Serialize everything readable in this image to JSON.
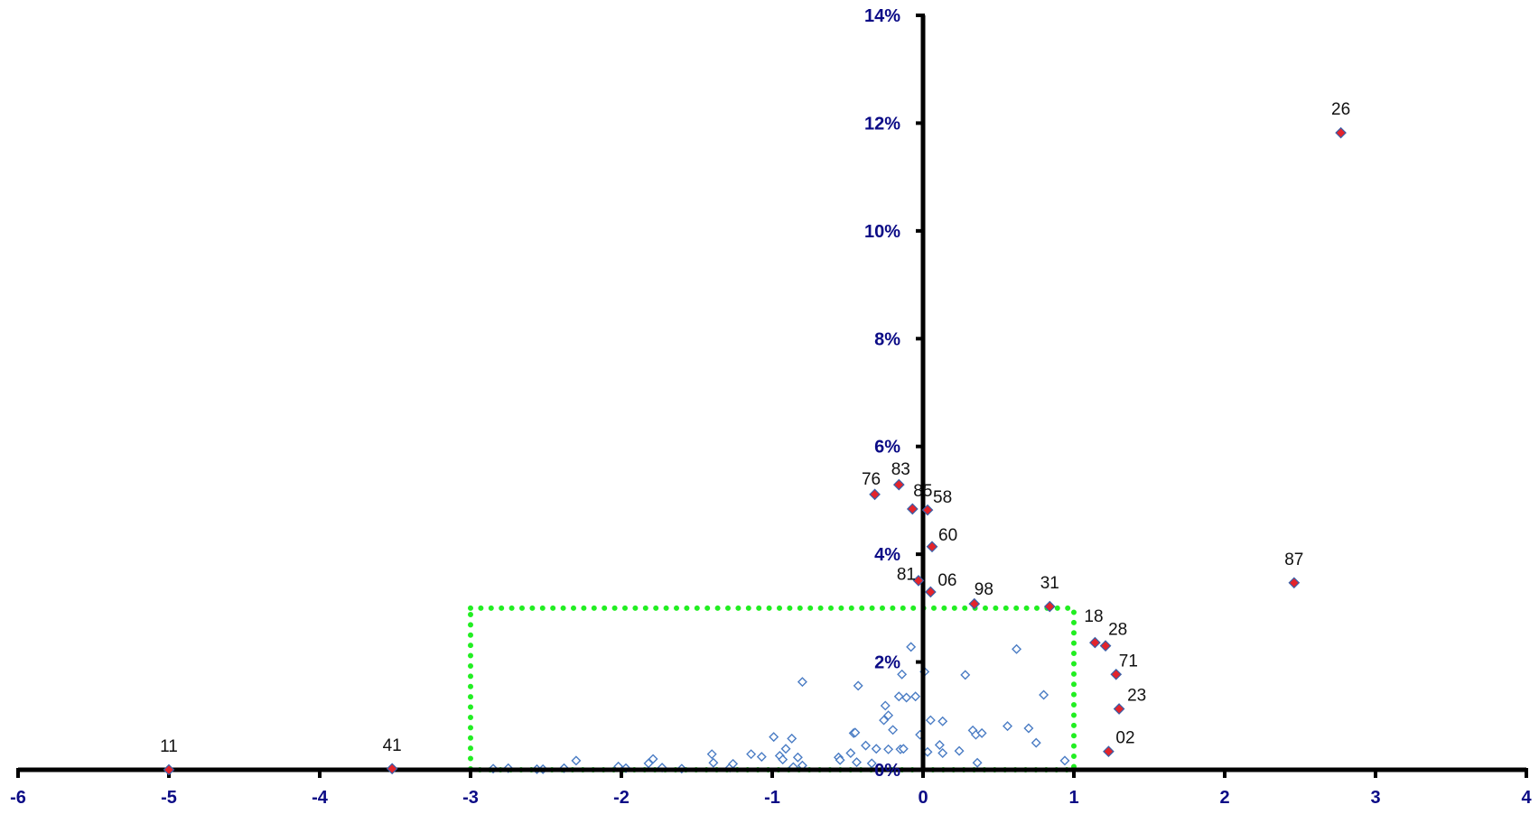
{
  "chart_data": {
    "type": "scatter",
    "title": "",
    "xlabel": "",
    "ylabel": "",
    "xlim": [
      -6,
      4
    ],
    "ylim": [
      0,
      0.14
    ],
    "grid": false,
    "x_ticks": [
      "-6",
      "-5",
      "-4",
      "-3",
      "-2",
      "-1",
      "0",
      "1",
      "2",
      "3",
      "4"
    ],
    "y_ticks": [
      "0%",
      "2%",
      "4%",
      "6%",
      "8%",
      "10%",
      "12%",
      "14%"
    ],
    "highlight_box": {
      "x": [
        -3,
        1
      ],
      "y": [
        0,
        0.03
      ]
    },
    "colors": {
      "axis": "#000000",
      "tick_text": "#0b0b86",
      "highlight_marker": "#e3242b",
      "highlight_outline": "#3a5fa8",
      "background_marker_outline": "#4a7cc4",
      "box": "#22ee22"
    },
    "labeled_points": [
      {
        "label": "26",
        "x": 2.77,
        "y": 0.1182
      },
      {
        "label": "87",
        "x": 2.46,
        "y": 0.0347
      },
      {
        "label": "76",
        "x": -0.32,
        "y": 0.0511
      },
      {
        "label": "83",
        "x": -0.16,
        "y": 0.0529
      },
      {
        "label": "85",
        "x": -0.07,
        "y": 0.0484
      },
      {
        "label": "58",
        "x": 0.03,
        "y": 0.0482
      },
      {
        "label": "60",
        "x": 0.06,
        "y": 0.0414
      },
      {
        "label": "81",
        "x": -0.03,
        "y": 0.0351
      },
      {
        "label": "06",
        "x": 0.05,
        "y": 0.033
      },
      {
        "label": "98",
        "x": 0.34,
        "y": 0.0308
      },
      {
        "label": "31",
        "x": 0.84,
        "y": 0.0303
      },
      {
        "label": "18",
        "x": 1.14,
        "y": 0.0236
      },
      {
        "label": "28",
        "x": 1.21,
        "y": 0.023
      },
      {
        "label": "71",
        "x": 1.28,
        "y": 0.0177
      },
      {
        "label": "23",
        "x": 1.3,
        "y": 0.0113
      },
      {
        "label": "02",
        "x": 1.23,
        "y": 0.0034
      },
      {
        "label": "11",
        "x": -5.0,
        "y": 0.0
      },
      {
        "label": "41",
        "x": -3.52,
        "y": 0.0002
      }
    ],
    "points": [
      {
        "x": -2.85,
        "y": 0.0002
      },
      {
        "x": -2.75,
        "y": 0.0003
      },
      {
        "x": -2.56,
        "y": 0.0001
      },
      {
        "x": -2.52,
        "y": 0.0001
      },
      {
        "x": -2.38,
        "y": 0.0003
      },
      {
        "x": -2.3,
        "y": 0.0017
      },
      {
        "x": -2.02,
        "y": 0.0006
      },
      {
        "x": -1.97,
        "y": 0.0003
      },
      {
        "x": -1.82,
        "y": 0.0012
      },
      {
        "x": -1.79,
        "y": 0.002
      },
      {
        "x": -1.73,
        "y": 0.0004
      },
      {
        "x": -1.6,
        "y": 0.0002
      },
      {
        "x": -1.4,
        "y": 0.0029
      },
      {
        "x": -1.39,
        "y": 0.0013
      },
      {
        "x": -1.28,
        "y": 0.0004
      },
      {
        "x": -1.26,
        "y": 0.0011
      },
      {
        "x": -1.14,
        "y": 0.0029
      },
      {
        "x": -1.07,
        "y": 0.0024
      },
      {
        "x": -0.99,
        "y": 0.0061
      },
      {
        "x": -0.95,
        "y": 0.0026
      },
      {
        "x": -0.93,
        "y": 0.0019
      },
      {
        "x": -0.91,
        "y": 0.0039
      },
      {
        "x": -0.87,
        "y": 0.0058
      },
      {
        "x": -0.86,
        "y": 0.0005
      },
      {
        "x": -0.83,
        "y": 0.0023
      },
      {
        "x": -0.8,
        "y": 0.0163
      },
      {
        "x": -0.8,
        "y": 0.0008
      },
      {
        "x": -0.56,
        "y": 0.0023
      },
      {
        "x": -0.55,
        "y": 0.0018
      },
      {
        "x": -0.48,
        "y": 0.0031
      },
      {
        "x": -0.46,
        "y": 0.0068
      },
      {
        "x": -0.45,
        "y": 0.0069
      },
      {
        "x": -0.44,
        "y": 0.0014
      },
      {
        "x": -0.43,
        "y": 0.0156
      },
      {
        "x": -0.38,
        "y": 0.0045
      },
      {
        "x": -0.34,
        "y": 0.0012
      },
      {
        "x": -0.31,
        "y": 0.0039
      },
      {
        "x": -0.26,
        "y": 0.0092
      },
      {
        "x": -0.25,
        "y": 0.0119
      },
      {
        "x": -0.23,
        "y": 0.0101
      },
      {
        "x": -0.23,
        "y": 0.0038
      },
      {
        "x": -0.2,
        "y": 0.0074
      },
      {
        "x": -0.16,
        "y": 0.0136
      },
      {
        "x": -0.15,
        "y": 0.0038
      },
      {
        "x": -0.14,
        "y": 0.0177
      },
      {
        "x": -0.13,
        "y": 0.0039
      },
      {
        "x": -0.11,
        "y": 0.0134
      },
      {
        "x": -0.08,
        "y": 0.0228
      },
      {
        "x": -0.05,
        "y": 0.0136
      },
      {
        "x": -0.02,
        "y": 0.0065
      },
      {
        "x": 0.01,
        "y": 0.0182
      },
      {
        "x": 0.03,
        "y": 0.0033
      },
      {
        "x": 0.05,
        "y": 0.0092
      },
      {
        "x": 0.11,
        "y": 0.0046
      },
      {
        "x": 0.13,
        "y": 0.0031
      },
      {
        "x": 0.13,
        "y": 0.009
      },
      {
        "x": 0.24,
        "y": 0.0035
      },
      {
        "x": 0.28,
        "y": 0.0176
      },
      {
        "x": 0.33,
        "y": 0.0073
      },
      {
        "x": 0.35,
        "y": 0.0065
      },
      {
        "x": 0.36,
        "y": 0.0013
      },
      {
        "x": 0.39,
        "y": 0.0068
      },
      {
        "x": 0.56,
        "y": 0.0081
      },
      {
        "x": 0.62,
        "y": 0.0224
      },
      {
        "x": 0.7,
        "y": 0.0077
      },
      {
        "x": 0.75,
        "y": 0.005
      },
      {
        "x": 0.8,
        "y": 0.0139
      },
      {
        "x": 0.94,
        "y": 0.0017
      }
    ]
  }
}
